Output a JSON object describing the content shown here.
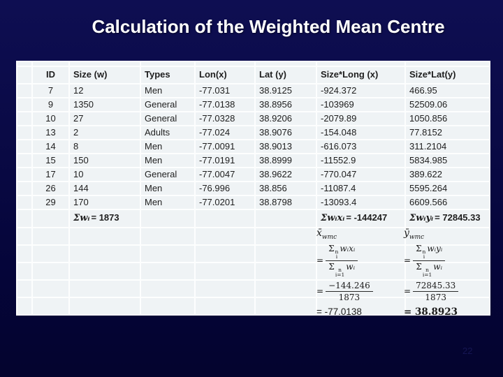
{
  "slide": {
    "title": "Calculation of the Weighted Mean Centre",
    "page_number": "22"
  },
  "table": {
    "headers": [
      "ID",
      "Size (w)",
      "Types",
      "Lon(x)",
      "Lat (y)",
      "Size*Long (x)",
      "Size*Lat(y)"
    ],
    "rows": [
      [
        "7",
        "12",
        "Men",
        "-77.031",
        "38.9125",
        "-924.372",
        "466.95"
      ],
      [
        "9",
        "1350",
        "General",
        "-77.0138",
        "38.8956",
        "-103969",
        "52509.06"
      ],
      [
        "10",
        "27",
        "General",
        "-77.0328",
        "38.9206",
        "-2079.89",
        "1050.856"
      ],
      [
        "13",
        "2",
        "Adults",
        "-77.024",
        "38.9076",
        "-154.048",
        "77.8152"
      ],
      [
        "14",
        "8",
        "Men",
        "-77.0091",
        "38.9013",
        "-616.073",
        "311.2104"
      ],
      [
        "15",
        "150",
        "Men",
        "-77.0191",
        "38.8999",
        "-11552.9",
        "5834.985"
      ],
      [
        "17",
        "10",
        "General",
        "-77.0047",
        "38.9622",
        "-770.047",
        "389.622"
      ],
      [
        "26",
        "144",
        "Men",
        "-76.996",
        "38.856",
        "-11087.4",
        "5595.264"
      ],
      [
        "29",
        "170",
        "Men",
        "-77.0201",
        "38.8798",
        "-13093.4",
        "6609.566"
      ]
    ],
    "sums": {
      "w": {
        "expr": "Σwᵢ",
        "value": "= 1873"
      },
      "wx": {
        "expr": "Σwᵢxᵢ",
        "value": "= -144247"
      },
      "wy": {
        "expr": "Σwᵢyᵢ",
        "value": "= 72845.33"
      }
    }
  },
  "formulas": {
    "x": {
      "head": "x̄",
      "head_sub": "wmc",
      "eq": "=",
      "num_sigma": "Σ",
      "num_sup": "n",
      "num_sub": "i",
      "num_expr": "wᵢxᵢ",
      "den_sigma": "Σ",
      "den_sup": "n",
      "den_sub": "i=1",
      "den_expr": "wᵢ",
      "value_num": "−144.246",
      "value_den": "1873",
      "result": "= -77.0138"
    },
    "y": {
      "head": "ȳ",
      "head_sub": "wmc",
      "eq": "=",
      "num_sigma": "Σ",
      "num_sup": "n",
      "num_sub": "i",
      "num_expr": "wᵢyᵢ",
      "den_sigma": "Σ",
      "den_sup": "n",
      "den_sub": "i=1",
      "den_expr": "wᵢ",
      "value_num": "72845.33",
      "value_den": "1873",
      "result": "= 38.8923"
    }
  }
}
